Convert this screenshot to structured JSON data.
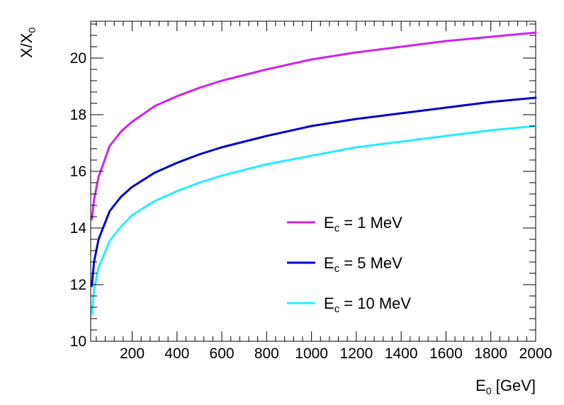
{
  "chart_data": {
    "type": "line",
    "title": "",
    "xlabel": {
      "main": "E",
      "sub": "0",
      "rest": " [GeV]"
    },
    "ylabel": {
      "main": "X/X",
      "sub": "0"
    },
    "xlim": [
      15,
      2000
    ],
    "ylim": [
      10,
      21.3
    ],
    "xticks": [
      200,
      400,
      600,
      800,
      1000,
      1200,
      1400,
      1600,
      1800,
      2000
    ],
    "yticks": [
      10,
      12,
      14,
      16,
      18,
      20
    ],
    "xtick_labels": [
      "200",
      "400",
      "600",
      "800",
      "1000",
      "1200",
      "1400",
      "1600",
      "1800",
      "2000"
    ],
    "ytick_labels": [
      "10",
      "12",
      "14",
      "16",
      "18",
      "20"
    ],
    "grid": false,
    "legend_position": "center-right",
    "x": [
      20,
      30,
      50,
      100,
      150,
      200,
      300,
      400,
      500,
      600,
      800,
      1000,
      1200,
      1400,
      1600,
      1800,
      2000
    ],
    "series": [
      {
        "name": {
          "main": "E",
          "sub": "c",
          "rest": " = 1 MeV"
        },
        "color": "#cc22ee",
        "values": [
          14.3,
          15.0,
          15.8,
          16.9,
          17.4,
          17.75,
          18.3,
          18.65,
          18.95,
          19.2,
          19.6,
          19.95,
          20.2,
          20.4,
          20.6,
          20.75,
          20.9
        ]
      },
      {
        "name": {
          "main": "E",
          "sub": "c",
          "rest": " = 5 MeV"
        },
        "color": "#0000cc",
        "values": [
          11.95,
          12.8,
          13.6,
          14.6,
          15.1,
          15.45,
          15.95,
          16.3,
          16.6,
          16.85,
          17.25,
          17.6,
          17.85,
          18.05,
          18.25,
          18.45,
          18.6
        ]
      },
      {
        "name": {
          "main": "E",
          "sub": "c",
          "rest": " = 10 MeV"
        },
        "color": "#22eeff",
        "values": [
          10.95,
          11.8,
          12.6,
          13.55,
          14.05,
          14.45,
          14.95,
          15.3,
          15.6,
          15.85,
          16.25,
          16.55,
          16.85,
          17.05,
          17.25,
          17.45,
          17.6
        ]
      }
    ]
  }
}
